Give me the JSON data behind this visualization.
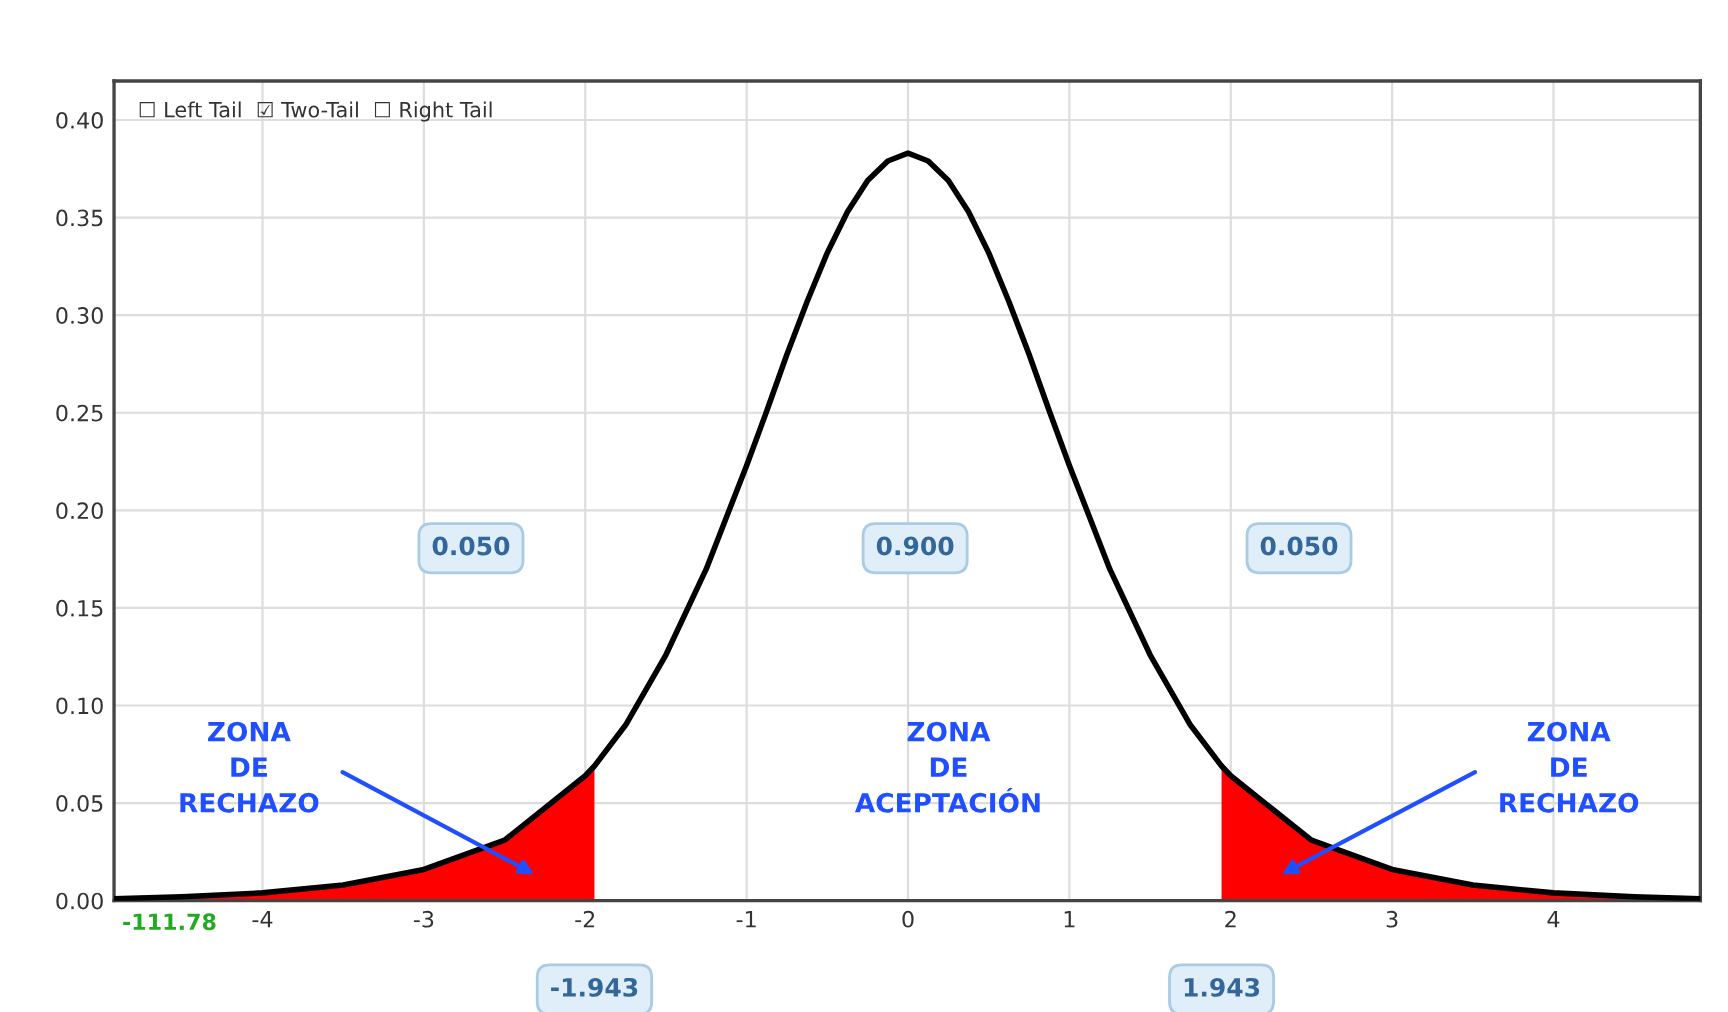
{
  "chart_data": {
    "type": "line",
    "xlim": [
      -4.92,
      4.91
    ],
    "ylim": [
      0,
      0.42
    ],
    "xticks": [
      -4,
      -3,
      -2,
      -1,
      0,
      1,
      2,
      3,
      4
    ],
    "yticks": [
      {
        "value": 0,
        "label": "0.00"
      },
      {
        "value": 0.05,
        "label": "0.05"
      },
      {
        "value": 0.1,
        "label": "0.10"
      },
      {
        "value": 0.15,
        "label": "0.15"
      },
      {
        "value": 0.2,
        "label": "0.20"
      },
      {
        "value": 0.25,
        "label": "0.25"
      },
      {
        "value": 0.3,
        "label": "0.30"
      },
      {
        "value": 0.35,
        "label": "0.35"
      },
      {
        "value": 0.4,
        "label": "0.40"
      }
    ],
    "grid": true,
    "legend": false,
    "series": [
      {
        "type": "area",
        "color": "#ff0000",
        "x": [
          -4.92,
          -4.5,
          -4,
          -3.5,
          -3,
          -2.5,
          -2,
          -1.943
        ],
        "values": [
          0.001,
          0.002,
          0.004,
          0.008,
          0.016,
          0.031,
          0.064,
          0.069
        ]
      },
      {
        "type": "area",
        "color": "#ff0000",
        "x": [
          1.943,
          2,
          2.5,
          3,
          3.5,
          4,
          4.5,
          4.91
        ],
        "values": [
          0.069,
          0.064,
          0.031,
          0.016,
          0.008,
          0.004,
          0.002,
          0.001
        ]
      },
      {
        "color": "#000000",
        "x": [
          -4.92,
          -4.5,
          -4,
          -3.5,
          -3,
          -2.5,
          -2,
          -1.943,
          -1.75,
          -1.5,
          -1.25,
          -1,
          -0.875,
          -0.75,
          -0.625,
          -0.5,
          -0.375,
          -0.25,
          -0.125,
          0,
          0.125,
          0.25,
          0.375,
          0.5,
          0.625,
          0.75,
          0.875,
          1,
          1.25,
          1.5,
          1.75,
          1.943,
          2,
          2.5,
          3,
          3.5,
          4,
          4.5,
          4.91
        ],
        "values": [
          0.001,
          0.002,
          0.004,
          0.008,
          0.016,
          0.031,
          0.064,
          0.069,
          0.09,
          0.126,
          0.17,
          0.223,
          0.251,
          0.28,
          0.307,
          0.332,
          0.353,
          0.369,
          0.379,
          0.383,
          0.379,
          0.369,
          0.353,
          0.332,
          0.307,
          0.28,
          0.251,
          0.223,
          0.17,
          0.126,
          0.09,
          0.069,
          0.064,
          0.031,
          0.016,
          0.008,
          0.004,
          0.002,
          0.001
        ]
      }
    ],
    "annotations": [
      "☐ Left Tail  ☑ Two-Tail  ☐ Right Tail",
      "-111.78",
      "0.050",
      "0.900",
      "0.050",
      "-1.943",
      "1.943",
      "ZONA\nDE\nRECHAZO",
      "ZONA\nDE\nACEPTACIÓN",
      "ZONA\nDE\nRECHAZO"
    ]
  }
}
